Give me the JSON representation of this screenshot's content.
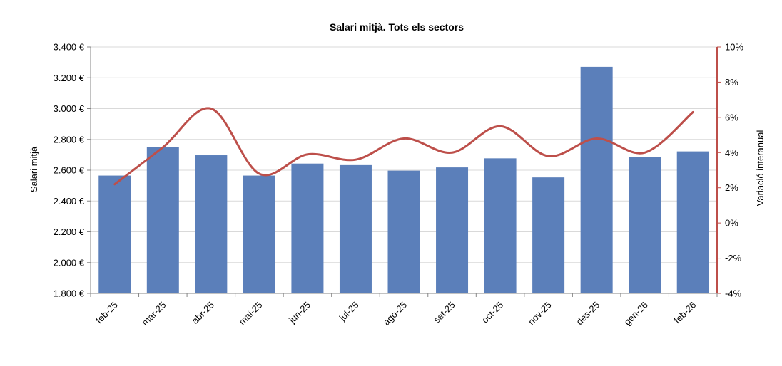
{
  "chart_data": {
    "type": "bar",
    "title": "Salari mitjà. Tots els sectors",
    "categories": [
      "feb-25",
      "mar-25",
      "abr-25",
      "mai-25",
      "jun-25",
      "jul-25",
      "ago-25",
      "set-25",
      "oct-25",
      "nov-25",
      "des-25",
      "gen-26",
      "feb-26"
    ],
    "series": [
      {
        "type": "bar",
        "axis": "left",
        "values": [
          2565,
          2752,
          2697,
          2565,
          2643,
          2633,
          2597,
          2618,
          2677,
          2553,
          3271,
          2686,
          2722
        ]
      },
      {
        "type": "line",
        "axis": "right",
        "smooth": true,
        "values": [
          2.2,
          4.3,
          6.5,
          2.8,
          3.9,
          3.6,
          4.8,
          4.0,
          5.5,
          3.8,
          4.8,
          4.0,
          6.3
        ]
      }
    ],
    "ylabel": "Salari mitjà",
    "y2label": "Variació interanual",
    "ylim": [
      1800,
      3400
    ],
    "y2lim": [
      -4,
      10
    ],
    "yticks": [
      "1.800 €",
      "2.000 €",
      "2.200 €",
      "2.400 €",
      "2.600 €",
      "2.800 €",
      "3.000 €",
      "3.200 €",
      "3.400 €"
    ],
    "y2ticks": [
      "-4%",
      "-2%",
      "0%",
      "2%",
      "4%",
      "6%",
      "8%",
      "10%"
    ],
    "grid": true,
    "colors": {
      "bars": "#5b7fba",
      "line": "#bd4f4a",
      "grid": "#d9d9d9",
      "axis": "#868686",
      "right_axis": "#bd4f4a"
    }
  }
}
